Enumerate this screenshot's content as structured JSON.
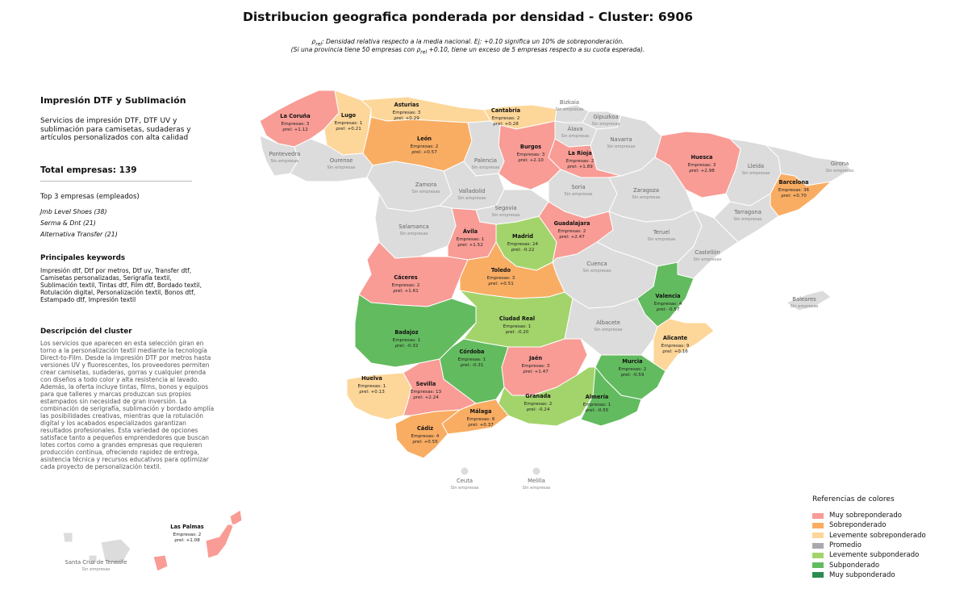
{
  "title": "Distribucion geografica ponderada por densidad - Cluster: 6906",
  "note_line1": "ρrel: Densidad relativa respecto a la media nacional. Ej: +0.10 significa un 10% de sobreponderación.",
  "note_line2": "(Si una provincia tiene 50 empresas con ρrel +0.10, tiene un exceso de 5 empresas respecto a su cuota esperada).",
  "panel": {
    "category_title": "Impresión DTF y Sublimación",
    "category_desc": "Servicios de impresión DTF, DTF UV y sublimación para camisetas, sudaderas y artículos personalizados con alta calidad",
    "total": "Total empresas: 139",
    "top3_title": "Top 3 empresas (empleados)",
    "top3": [
      "Jmb Level Shoes (38)",
      "Serma & Dnt (21)",
      "Alternativa Transfer (21)"
    ],
    "keywords_title": "Principales keywords",
    "keywords": "Impresión dtf, Dtf por metros, Dtf uv, Transfer dtf, Camisetas personalizadas, Serigrafía textil, Sublimación textil, Tintas dtf, Film dtf, Bordado textil, Rotulación digital, Personalización textil, Bonos dtf, Estampado dtf, Impresión textil",
    "description_title": "Descripción del cluster",
    "description": "Los servicios que aparecen en esta selección giran en torno a la personalización textil mediante la tecnología Direct-to-Film. Desde la impresión DTF por metros hasta versiones UV y fluorescentes, los proveedores permiten crear camisetas, sudaderas, gorras y cualquier prenda con diseños a todo color y alta resistencia al lavado. Además, la oferta incluye tintas, films, bonos y equipos para que talleres y marcas produzcan sus propios estampados sin necesidad de gran inversión. La combinación de serigrafía, sublimación y bordado amplía las posibilidades creativas, mientras que la rotulación digital y los acabados especializados garantizan resultados profesionales. Esta variedad de opciones satisface tanto a pequeños emprendedores que buscan lotes cortos como a grandes empresas que requieren producción continua, ofreciendo rapidez de entrega, asistencia técnica y recursos educativos para optimizar cada proyecto de personalización textil."
  },
  "colors": {
    "muy_sobre": "#f89c95",
    "sobre": "#f9ad63",
    "lev_sobre": "#fdd699",
    "promedio": "#a9a9b0",
    "lev_sub": "#a3d46b",
    "sub": "#63bb5f",
    "muy_sub": "#2a8c4e",
    "none": "#dcdcdc"
  },
  "legend": {
    "title": "Referencias de colores",
    "items": [
      {
        "label": "Muy sobreponderado",
        "color": "#f89c95"
      },
      {
        "label": "Sobreponderado",
        "color": "#f9ad63"
      },
      {
        "label": "Levemente sobreponderado",
        "color": "#fdd699"
      },
      {
        "label": "Promedio",
        "color": "#a9a9b0"
      },
      {
        "label": "Levemente subponderado",
        "color": "#a3d46b"
      },
      {
        "label": "Subponderado",
        "color": "#63bb5f"
      },
      {
        "label": "Muy subponderado",
        "color": "#2a8c4e"
      }
    ]
  },
  "no_data_label": "Sin empresas",
  "companies_prefix": "Empresas: ",
  "rho_prefix": "ρrel: ",
  "provinces": [
    {
      "name": "La Coruña",
      "count": 3,
      "rho": "+1.12",
      "cls": "muy_sobre"
    },
    {
      "name": "Lugo",
      "count": 1,
      "rho": "+0.21",
      "cls": "lev_sobre"
    },
    {
      "name": "Asturias",
      "count": 3,
      "rho": "+0.29",
      "cls": "lev_sobre"
    },
    {
      "name": "Cantabria",
      "count": 2,
      "rho": "+0.28",
      "cls": "lev_sobre"
    },
    {
      "name": "León",
      "count": 2,
      "rho": "+0.57",
      "cls": "sobre"
    },
    {
      "name": "Burgos",
      "count": 3,
      "rho": "+2.10",
      "cls": "muy_sobre"
    },
    {
      "name": "La Rioja",
      "count": 2,
      "rho": "+1.89",
      "cls": "muy_sobre"
    },
    {
      "name": "Huesca",
      "count": 3,
      "rho": "+2.98",
      "cls": "muy_sobre"
    },
    {
      "name": "Barcelona",
      "count": 36,
      "rho": "+0.70",
      "cls": "sobre"
    },
    {
      "name": "Guadalajara",
      "count": 2,
      "rho": "+2.47",
      "cls": "muy_sobre"
    },
    {
      "name": "Ávila",
      "count": 1,
      "rho": "+1.52",
      "cls": "muy_sobre"
    },
    {
      "name": "Madrid",
      "count": 24,
      "rho": "-0.22",
      "cls": "lev_sub"
    },
    {
      "name": "Cáceres",
      "count": 2,
      "rho": "+1.61",
      "cls": "muy_sobre"
    },
    {
      "name": "Toledo",
      "count": 3,
      "rho": "+0.51",
      "cls": "sobre"
    },
    {
      "name": "Valencia",
      "count": 4,
      "rho": "-0.57",
      "cls": "sub"
    },
    {
      "name": "Ciudad Real",
      "count": 1,
      "rho": "-0.20",
      "cls": "lev_sub"
    },
    {
      "name": "Badajoz",
      "count": 1,
      "rho": "-0.32",
      "cls": "sub"
    },
    {
      "name": "Alicante",
      "count": 9,
      "rho": "+0.16",
      "cls": "lev_sobre"
    },
    {
      "name": "Córdoba",
      "count": 1,
      "rho": "-0.31",
      "cls": "sub"
    },
    {
      "name": "Jaén",
      "count": 3,
      "rho": "+1.47",
      "cls": "muy_sobre"
    },
    {
      "name": "Murcia",
      "count": 2,
      "rho": "-0.59",
      "cls": "sub"
    },
    {
      "name": "Huelva",
      "count": 1,
      "rho": "+0.13",
      "cls": "lev_sobre"
    },
    {
      "name": "Sevilla",
      "count": 13,
      "rho": "+2.24",
      "cls": "muy_sobre"
    },
    {
      "name": "Granada",
      "count": 2,
      "rho": "-0.24",
      "cls": "lev_sub"
    },
    {
      "name": "Almería",
      "count": 1,
      "rho": "-0.55",
      "cls": "sub"
    },
    {
      "name": "Málaga",
      "count": 8,
      "rho": "+0.37",
      "cls": "sobre"
    },
    {
      "name": "Cádiz",
      "count": 4,
      "rho": "+0.55",
      "cls": "sobre"
    },
    {
      "name": "Las Palmas",
      "count": 2,
      "rho": "+1.08",
      "cls": "muy_sobre"
    },
    {
      "name": "Pontevedra",
      "count": null,
      "rho": null,
      "cls": "none"
    },
    {
      "name": "Ourense",
      "count": null,
      "rho": null,
      "cls": "none"
    },
    {
      "name": "Palencia",
      "count": null,
      "rho": null,
      "cls": "none"
    },
    {
      "name": "Bizkaia",
      "count": null,
      "rho": null,
      "cls": "none"
    },
    {
      "name": "Gipuzkoa",
      "count": null,
      "rho": null,
      "cls": "none"
    },
    {
      "name": "Álava",
      "count": null,
      "rho": null,
      "cls": "none"
    },
    {
      "name": "Navarra",
      "count": null,
      "rho": null,
      "cls": "none"
    },
    {
      "name": "Lleida",
      "count": null,
      "rho": null,
      "cls": "none"
    },
    {
      "name": "Girona",
      "count": null,
      "rho": null,
      "cls": "none"
    },
    {
      "name": "Zamora",
      "count": null,
      "rho": null,
      "cls": "none"
    },
    {
      "name": "Valladolid",
      "count": null,
      "rho": null,
      "cls": "none"
    },
    {
      "name": "Soria",
      "count": null,
      "rho": null,
      "cls": "none"
    },
    {
      "name": "Zaragoza",
      "count": null,
      "rho": null,
      "cls": "none"
    },
    {
      "name": "Tarragona",
      "count": null,
      "rho": null,
      "cls": "none"
    },
    {
      "name": "Salamanca",
      "count": null,
      "rho": null,
      "cls": "none"
    },
    {
      "name": "Segovia",
      "count": null,
      "rho": null,
      "cls": "none"
    },
    {
      "name": "Teruel",
      "count": null,
      "rho": null,
      "cls": "none"
    },
    {
      "name": "Castellón",
      "count": null,
      "rho": null,
      "cls": "none"
    },
    {
      "name": "Cuenca",
      "count": null,
      "rho": null,
      "cls": "none"
    },
    {
      "name": "Baleares",
      "count": null,
      "rho": null,
      "cls": "none"
    },
    {
      "name": "Albacete",
      "count": null,
      "rho": null,
      "cls": "none"
    },
    {
      "name": "Ceuta",
      "count": null,
      "rho": null,
      "cls": "none"
    },
    {
      "name": "Melilla",
      "count": null,
      "rho": null,
      "cls": "none"
    },
    {
      "name": "Santa Cruz de Tenerife",
      "count": null,
      "rho": null,
      "cls": "none"
    }
  ]
}
